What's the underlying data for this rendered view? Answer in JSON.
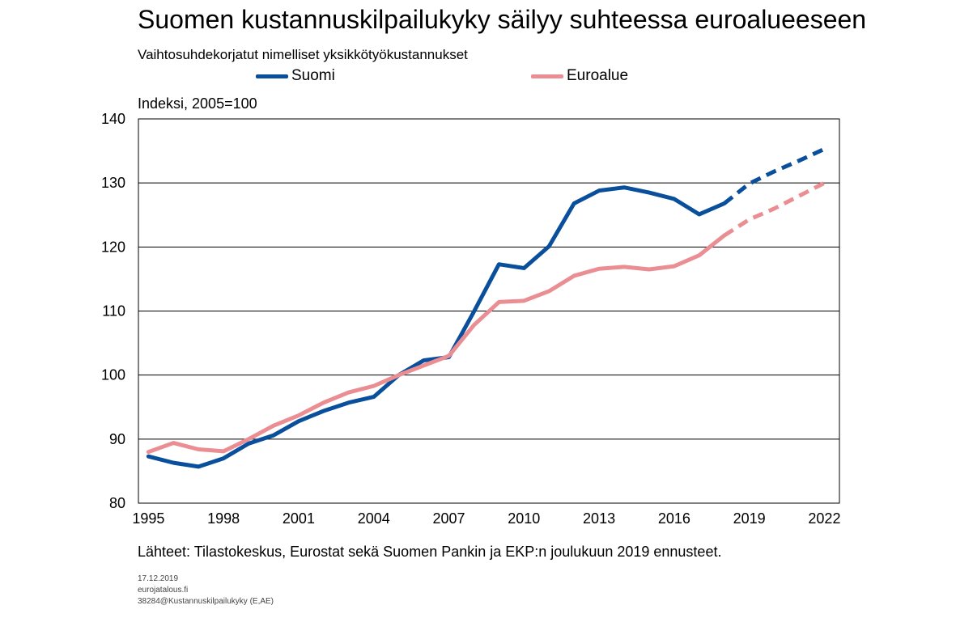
{
  "chart_data": {
    "type": "line",
    "title": "Suomen kustannuskilpailukyky säilyy suhteessa euroalueeseen",
    "subtitle": "Vaihtosuhdekorjatut nimelliset yksikkötyökustannukset",
    "ylabel": "Indeksi, 2005=100",
    "xlabel": "",
    "xlim": [
      1994.6,
      2022.6
    ],
    "ylim": [
      80,
      140
    ],
    "x_ticks": [
      1995,
      1998,
      2001,
      2004,
      2007,
      2010,
      2013,
      2016,
      2019,
      2022
    ],
    "y_ticks": [
      80,
      90,
      100,
      110,
      120,
      130,
      140
    ],
    "grid": "horizontal",
    "legend_position": "top",
    "forecast_from": 2018,
    "x": [
      1995,
      1996,
      1997,
      1998,
      1999,
      2000,
      2001,
      2002,
      2003,
      2004,
      2005,
      2006,
      2007,
      2008,
      2009,
      2010,
      2011,
      2012,
      2013,
      2014,
      2015,
      2016,
      2017,
      2018,
      2019,
      2020,
      2021,
      2022
    ],
    "series": [
      {
        "name": "Suomi",
        "color": "#0a4f9c",
        "values": [
          87.3,
          86.3,
          85.7,
          87.0,
          89.3,
          90.6,
          92.8,
          94.4,
          95.7,
          96.6,
          100.0,
          102.3,
          102.8,
          109.9,
          117.3,
          116.7,
          120.1,
          126.8,
          128.8,
          129.3,
          128.5,
          127.5,
          125.1,
          126.8,
          129.9,
          131.8,
          133.5,
          135.3
        ]
      },
      {
        "name": "Euroalue",
        "color": "#eb8e94",
        "values": [
          88.0,
          89.4,
          88.4,
          88.1,
          90.0,
          92.1,
          93.7,
          95.7,
          97.3,
          98.3,
          100.0,
          101.5,
          103.0,
          107.8,
          111.4,
          111.6,
          113.1,
          115.5,
          116.6,
          116.9,
          116.5,
          117.0,
          118.7,
          121.8,
          124.3,
          126.0,
          128.0,
          130.0
        ]
      }
    ]
  },
  "source_text": "Lähteet: Tilastokeskus, Eurostat sekä Suomen Pankin ja EKP:n joulukuun  2019 ennusteet.",
  "footer": {
    "date": "17.12.2019",
    "site": "eurojatalous.fi",
    "ref": "38284@Kustannuskilpailukyky   (E,AE)"
  }
}
